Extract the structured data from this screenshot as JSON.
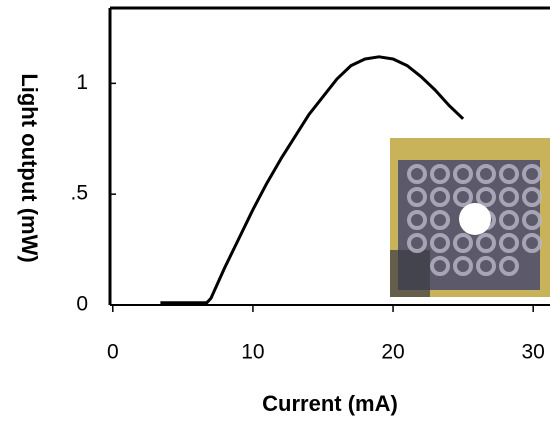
{
  "chart_data": {
    "type": "line",
    "x_label": "Current (mA)",
    "y_label": "Light output (mW)",
    "x": [
      3.4,
      6.7,
      7,
      8,
      9,
      10,
      11,
      12,
      13,
      14,
      15,
      16,
      17,
      18,
      19,
      20,
      21,
      22,
      23,
      24,
      25
    ],
    "series": [
      {
        "color": "#000000",
        "values": [
          0.01,
          0.01,
          0.03,
          0.17,
          0.3,
          0.43,
          0.55,
          0.66,
          0.76,
          0.86,
          0.94,
          1.02,
          1.08,
          1.11,
          1.12,
          1.11,
          1.08,
          1.03,
          0.97,
          0.9,
          0.84
        ]
      }
    ],
    "xlim": [
      -0.2,
      31.2
    ],
    "ylim": [
      0,
      1.34
    ],
    "xticks": [
      0,
      10,
      20,
      30
    ],
    "yticks": [
      0,
      {
        "value": 0.5,
        "label": ".5"
      },
      1
    ]
  }
}
